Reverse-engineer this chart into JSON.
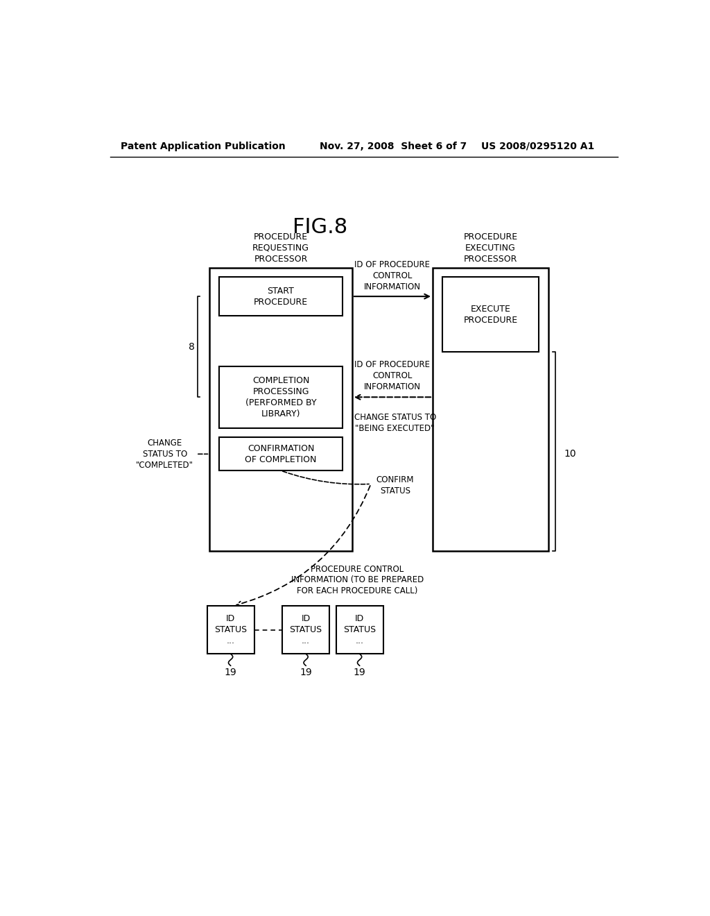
{
  "title": "FIG.8",
  "header_left": "Patent Application Publication",
  "header_mid": "Nov. 27, 2008  Sheet 6 of 7",
  "header_right": "US 2008/0295120 A1",
  "proc_req_label": "PROCEDURE\nREQUESTING\nPROCESSOR",
  "proc_exec_label": "PROCEDURE\nEXECUTING\nPROCESSOR",
  "start_proc_text": "START\nPROCEDURE",
  "execute_proc_text": "EXECUTE\nPROCEDURE",
  "completion_proc_text": "COMPLETION\nPROCESSING\n(PERFORMED BY\nLIBRARY)",
  "confirmation_text": "CONFIRMATION\nOF COMPLETION",
  "id_of_proc_ctrl_info1": "ID OF PROCEDURE\nCONTROL\nINFORMATION",
  "id_of_proc_ctrl_info2": "ID OF PROCEDURE\nCONTROL\nINFORMATION",
  "change_status_being_executed": "CHANGE STATUS TO\n\"BEING EXECUTED\"",
  "change_status_completed": "CHANGE\nSTATUS TO\n\"COMPLETED\"",
  "confirm_status": "CONFIRM\nSTATUS",
  "proc_ctrl_info_label": "PROCEDURE CONTROL\nINFORMATION (TO BE PREPARED\nFOR EACH PROCEDURE CALL)",
  "label_8": "8",
  "label_10": "10",
  "id_status_box_text": "ID\nSTATUS\n...",
  "bg_color": "#ffffff",
  "box_color": "#000000",
  "text_color": "#000000"
}
